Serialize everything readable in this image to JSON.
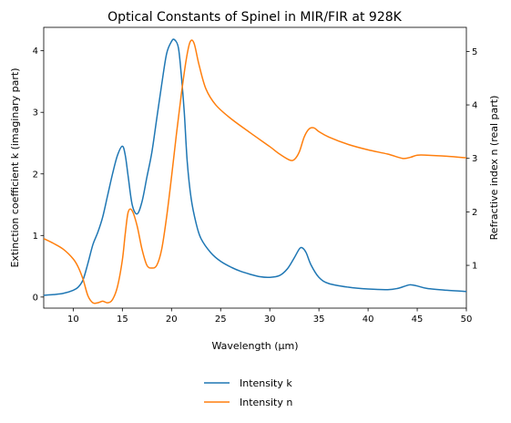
{
  "chart_data": {
    "type": "line",
    "title": "Optical Constants of Spinel in MIR/FIR at 928K",
    "xlabel": "Wavelength (μm)",
    "ylabel_left": "Extinction coefficient k (imaginary part)",
    "ylabel_right": "Refractive index n (real part)",
    "xlim": [
      7,
      50
    ],
    "ylim_left": [
      -0.18,
      4.38
    ],
    "ylim_right": [
      0.2,
      5.45
    ],
    "xticks": [
      10,
      15,
      20,
      25,
      30,
      35,
      40,
      45,
      50
    ],
    "yticks_left": [
      0,
      1,
      2,
      3,
      4
    ],
    "yticks_right": [
      1,
      2,
      3,
      4,
      5
    ],
    "grid": false,
    "legend_position": "bottom-center",
    "series": [
      {
        "name": "Intensity k",
        "axis": "left",
        "color": "#1f77b4",
        "x": [
          7,
          8,
          9,
          10,
          10.5,
          11,
          11.5,
          12,
          12.5,
          13,
          13.5,
          14,
          14.5,
          15,
          15.3,
          15.6,
          16,
          16.5,
          17,
          17.5,
          18,
          18.5,
          19,
          19.5,
          20,
          20.3,
          20.7,
          21,
          21.3,
          21.6,
          22,
          22.5,
          23,
          24,
          25,
          26,
          27,
          28,
          29,
          30,
          31,
          31.8,
          32.5,
          33,
          33.3,
          33.7,
          34.2,
          35,
          36,
          38,
          40,
          42,
          43,
          43.8,
          44.3,
          45,
          46,
          48,
          50
        ],
        "y": [
          0.03,
          0.04,
          0.06,
          0.11,
          0.16,
          0.28,
          0.55,
          0.85,
          1.05,
          1.3,
          1.65,
          2.0,
          2.3,
          2.45,
          2.3,
          1.95,
          1.5,
          1.35,
          1.55,
          1.95,
          2.35,
          2.9,
          3.45,
          3.95,
          4.15,
          4.18,
          4.05,
          3.6,
          3.0,
          2.2,
          1.6,
          1.2,
          0.95,
          0.72,
          0.58,
          0.49,
          0.42,
          0.37,
          0.33,
          0.32,
          0.35,
          0.46,
          0.64,
          0.78,
          0.8,
          0.72,
          0.52,
          0.32,
          0.22,
          0.16,
          0.13,
          0.12,
          0.14,
          0.18,
          0.2,
          0.18,
          0.14,
          0.11,
          0.09
        ]
      },
      {
        "name": "Intensity n",
        "axis": "right",
        "color": "#ff7f0e",
        "x": [
          7,
          8,
          9,
          10,
          10.5,
          11,
          11.5,
          12,
          12.5,
          13,
          13.5,
          14,
          14.5,
          15,
          15.3,
          15.6,
          16,
          16.5,
          17,
          17.5,
          18,
          18.5,
          19,
          19.5,
          20,
          20.5,
          21,
          21.5,
          21.9,
          22.3,
          22.8,
          23.5,
          24.5,
          26,
          28,
          30,
          31,
          32,
          32.5,
          33,
          33.5,
          34,
          34.5,
          35,
          36,
          38,
          40,
          42,
          43.5,
          44.3,
          45,
          46,
          48,
          50
        ],
        "y": [
          1.5,
          1.41,
          1.3,
          1.12,
          0.97,
          0.74,
          0.43,
          0.3,
          0.3,
          0.33,
          0.3,
          0.36,
          0.6,
          1.1,
          1.6,
          2.0,
          2.02,
          1.74,
          1.3,
          1.0,
          0.95,
          1.0,
          1.3,
          1.9,
          2.65,
          3.45,
          4.2,
          4.85,
          5.18,
          5.15,
          4.75,
          4.3,
          4.0,
          3.75,
          3.48,
          3.22,
          3.08,
          2.97,
          2.98,
          3.12,
          3.4,
          3.55,
          3.57,
          3.5,
          3.4,
          3.26,
          3.16,
          3.08,
          3.0,
          3.02,
          3.06,
          3.06,
          3.04,
          3.01
        ]
      }
    ]
  }
}
